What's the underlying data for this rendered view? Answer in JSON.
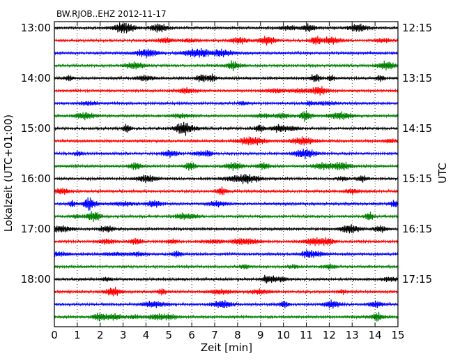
{
  "chart_data": {
    "type": "line",
    "plot_kind": "dayplot (helicorder)",
    "title": "BW.RJOB..EHZ 2012-11-17",
    "xlabel": "Zeit  [min]",
    "ylabel_left": "Lokalzeit (UTC+01:00)",
    "ylabel_right": "UTC",
    "xlim": [
      0,
      15
    ],
    "xticks": [
      "0",
      "1",
      "2",
      "3",
      "4",
      "5",
      "6",
      "7",
      "8",
      "9",
      "10",
      "11",
      "12",
      "13",
      "14",
      "15"
    ],
    "grid": "vertical dotted lines at each minute",
    "rows_per_hour": 4,
    "row_minutes": 15,
    "row_count": 24,
    "row_colors": [
      "#000000",
      "#ff0000",
      "#0000ff",
      "#008000"
    ],
    "left_ticks": [
      "13:00",
      "14:00",
      "15:00",
      "16:00",
      "17:00",
      "18:00"
    ],
    "right_ticks": [
      "12:15",
      "13:15",
      "14:15",
      "15:15",
      "16:15",
      "17:15"
    ],
    "tick_every_rows": 4,
    "series_note": "continuous seismic trace; each row is one 15-minute segment starting at 13:00 local time"
  }
}
